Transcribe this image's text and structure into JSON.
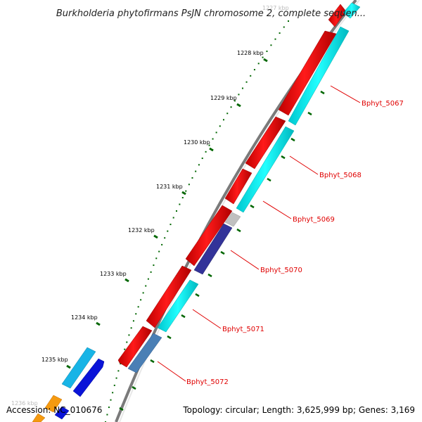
{
  "title": "Burkholderia phytofirmans PsJN chromosome 2, complete sequen...",
  "accession": "Accession: NC_010676",
  "summary": "Topology: circular; Length: 3,625,999 bp; Genes: 3,169",
  "scale_labels": [
    "1227 kbp",
    "1228 kbp",
    "1229 kbp",
    "1230 kbp",
    "1231 kbp",
    "1232 kbp",
    "1233 kbp",
    "1234 kbp",
    "1235 kbp",
    "1236 kbp"
  ],
  "gene_labels": [
    "Bphyt_5067",
    "Bphyt_5068",
    "Bphyt_5069",
    "Bphyt_5070",
    "Bphyt_5071",
    "Bphyt_5072"
  ],
  "colors": {
    "backbone": "#8a8a8a",
    "forward_red": "#ee0000",
    "cyan": "#00f0f0",
    "dark_blue": "#333399",
    "steel_blue": "#4a7fb5",
    "light_gray": "#c0c0c0",
    "tick_green": "#006600",
    "label_red": "#e00000",
    "sky": "#18b4e6",
    "blue": "#0a14d8",
    "orange": "#f59a10"
  }
}
